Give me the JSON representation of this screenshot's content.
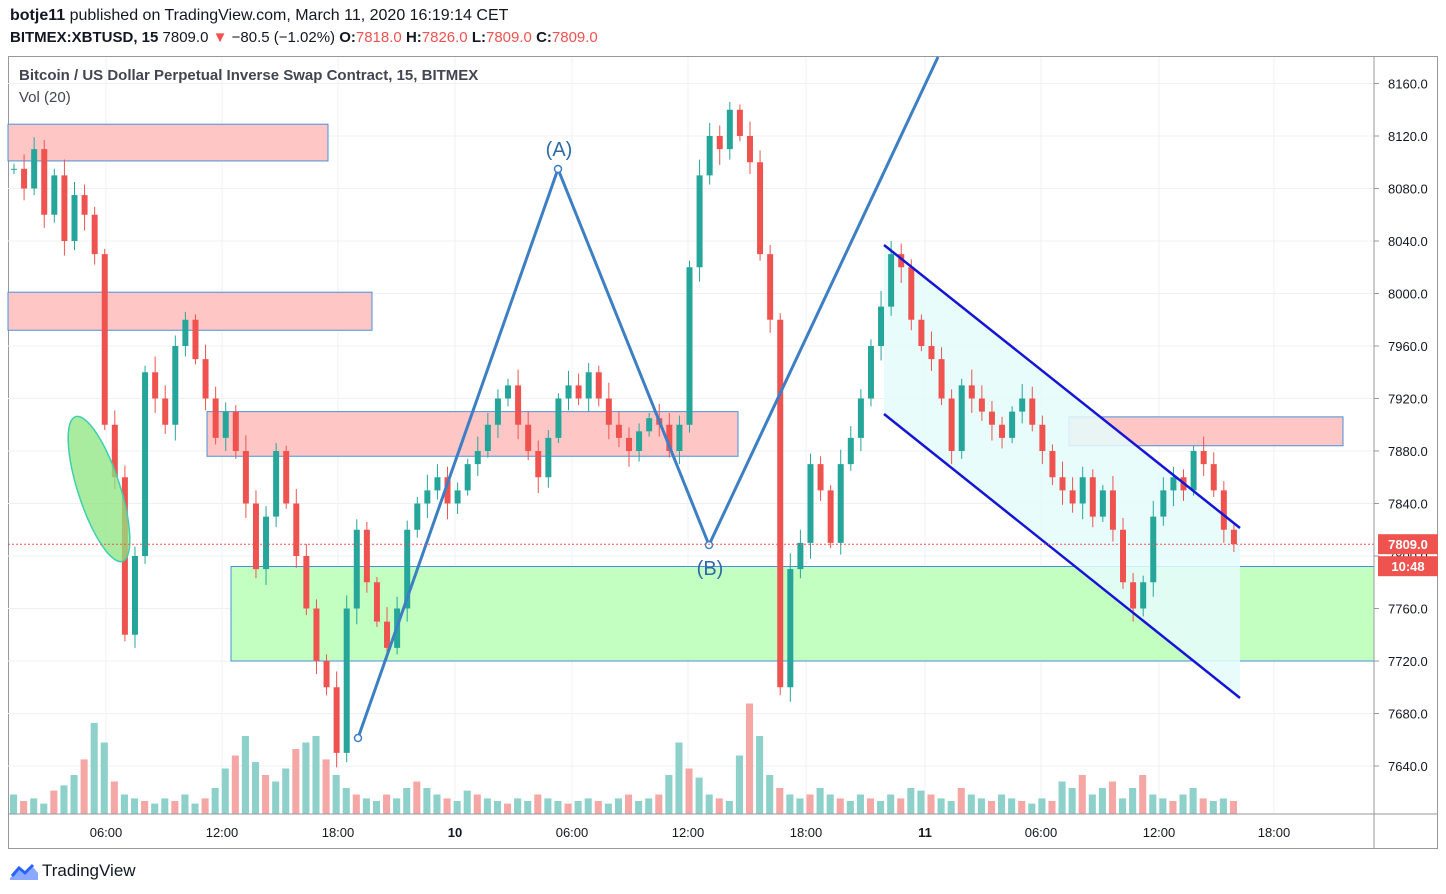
{
  "header": {
    "author": "botje11",
    "published": "published on TradingView.com, March 11, 2020 16:19:14 CET",
    "symbol": "BITMEX:XBTUSD, 15",
    "last": "7809.0",
    "change": "−80.5 (−1.02%)",
    "o_label": "O:",
    "o_value": "7818.0",
    "h_label": "H:",
    "h_value": "7826.0",
    "l_label": "L:",
    "l_value": "7809.0",
    "c_label": "C:",
    "c_value": "7809.0"
  },
  "chart_title": "Bitcoin / US Dollar Perpetual Inverse Swap Contract, 15, BITMEX",
  "volume_label": "Vol (20)",
  "footer": {
    "brand": "TradingView"
  },
  "colors": {
    "up": "#26a69a",
    "down": "#ef5350",
    "wave": "#3d7fc4",
    "channel": "#1515d6",
    "resistance_fill": "#ffc6c6",
    "support_fill": "#c2ffc0",
    "zone_border": "#4a90d9"
  },
  "chart_data": {
    "type": "candlestick",
    "title": "Bitcoin / US Dollar Perpetual Inverse Swap Contract, 15, BITMEX",
    "yticks": [
      7640,
      7680,
      7720,
      7760,
      7800,
      7840,
      7880,
      7920,
      7960,
      8000,
      8040,
      8080,
      8120,
      8160
    ],
    "ytick_labels": [
      "7640.0",
      "7680.0",
      "7720.0",
      "7760.0",
      "7800.0",
      "7840.0",
      "7880.0",
      "7920.0",
      "7960.0",
      "8000.0",
      "8040.0",
      "8080.0",
      "8120.0",
      "8160.0"
    ],
    "xticks": [
      "06:00",
      "12:00",
      "18:00",
      "10",
      "06:00",
      "12:00",
      "18:00",
      "11",
      "06:00",
      "12:00",
      "18:00"
    ],
    "price_label": "7809.0",
    "countdown_label": "10:48",
    "last_price": 7809,
    "waypoints": [
      {
        "label": "(A)",
        "value": 8093
      },
      {
        "label": "(B)",
        "value": 7806
      }
    ],
    "resistance_zones": [
      [
        8101,
        8129
      ],
      [
        7972,
        8001
      ],
      [
        7876,
        7910
      ],
      [
        7884,
        7906
      ]
    ],
    "support_zones": [
      [
        7720,
        7792
      ]
    ],
    "price_path": [
      8095,
      8080,
      8110,
      8060,
      8090,
      8040,
      8075,
      8060,
      8030,
      7900,
      7860,
      7740,
      7800,
      7940,
      7920,
      7900,
      7960,
      7980,
      7950,
      7920,
      7890,
      7910,
      7880,
      7840,
      7790,
      7830,
      7880,
      7840,
      7800,
      7760,
      7720,
      7700,
      7650,
      7760,
      7820,
      7780,
      7750,
      7730,
      7760,
      7820,
      7840,
      7850,
      7860,
      7840,
      7850,
      7870,
      7880,
      7900,
      7920,
      7930,
      7900,
      7880,
      7860,
      7890,
      7920,
      7930,
      7920,
      7940,
      7920,
      7900,
      7890,
      7880,
      7895,
      7905,
      7900,
      7880,
      7900,
      8020,
      8090,
      8120,
      8110,
      8140,
      8120,
      8100,
      8030,
      7980,
      7700,
      7790,
      7810,
      7870,
      7850,
      7810,
      7870,
      7890,
      7920,
      7960,
      7990,
      8030,
      8020,
      7980,
      7960,
      7950,
      7920,
      7880,
      7930,
      7920,
      7910,
      7900,
      7890,
      7910,
      7920,
      7900,
      7880,
      7860,
      7850,
      7840,
      7860,
      7830,
      7850,
      7820,
      7780,
      7760,
      7780,
      7830,
      7850,
      7860,
      7850,
      7880,
      7870,
      7850,
      7820,
      7809
    ],
    "volume_levels": [
      0.15,
      0.1,
      0.12,
      0.08,
      0.18,
      0.22,
      0.3,
      0.42,
      0.7,
      0.55,
      0.25,
      0.15,
      0.12,
      0.1,
      0.08,
      0.12,
      0.1,
      0.15,
      0.08,
      0.12,
      0.2,
      0.35,
      0.45,
      0.6,
      0.4,
      0.3,
      0.25,
      0.35,
      0.5,
      0.55,
      0.6,
      0.42,
      0.3,
      0.2,
      0.15,
      0.12,
      0.1,
      0.15,
      0.12,
      0.2,
      0.25,
      0.2,
      0.15,
      0.12,
      0.1,
      0.18,
      0.15,
      0.12,
      0.1,
      0.08,
      0.12,
      0.1,
      0.15,
      0.12,
      0.1,
      0.08,
      0.1,
      0.12,
      0.1,
      0.08,
      0.12,
      0.15,
      0.1,
      0.12,
      0.15,
      0.3,
      0.55,
      0.35,
      0.28,
      0.15,
      0.12,
      0.1,
      0.45,
      0.85,
      0.6,
      0.3,
      0.2,
      0.15,
      0.12,
      0.15,
      0.2,
      0.15,
      0.12,
      0.1,
      0.15,
      0.12,
      0.1,
      0.15,
      0.12,
      0.2,
      0.18,
      0.15,
      0.12,
      0.1,
      0.2,
      0.15,
      0.12,
      0.1,
      0.15,
      0.12,
      0.1,
      0.08,
      0.12,
      0.1,
      0.25,
      0.2,
      0.3,
      0.15,
      0.2,
      0.25,
      0.12,
      0.2,
      0.3,
      0.15,
      0.12,
      0.1,
      0.15,
      0.2,
      0.12,
      0.1,
      0.12,
      0.1
    ]
  }
}
